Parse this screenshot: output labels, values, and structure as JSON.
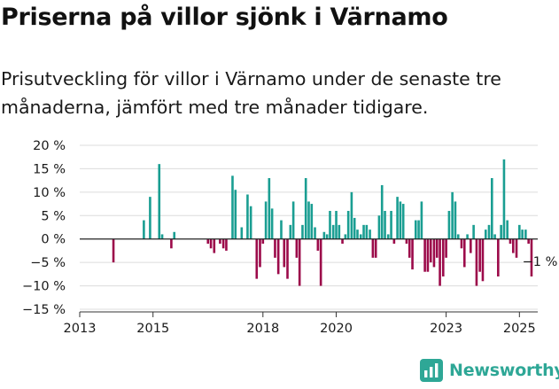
{
  "title": "Priserna på villor sjönk i Värnamo",
  "subtitle": "Prisutveckling för villor i Värnamo under de senaste tre månaderna, jämfört med tre månader tidigare.",
  "brand": {
    "name": "Newsworthy"
  },
  "colors": {
    "positive": "#1a9e92",
    "negative": "#9c0a4a",
    "grid": "#dcdcdc",
    "axis": "#333333",
    "brand": "#2ea796"
  },
  "chart_data": {
    "type": "bar",
    "title": "Priserna på villor sjönk i Värnamo",
    "subtitle": "Prisutveckling för villor i Värnamo under de senaste tre månaderna, jämfört med tre månader tidigare.",
    "xlabel": "",
    "ylabel": "",
    "x_range": [
      2013.0,
      2025.5
    ],
    "ylim": [
      -15,
      20
    ],
    "y_ticks": [
      20,
      15,
      10,
      5,
      0,
      -5,
      -10,
      -15
    ],
    "y_tick_labels": [
      "20 %",
      "15 %",
      "10 %",
      "5 %",
      "0 %",
      "−5 %",
      "−10 %",
      "−15 %"
    ],
    "x_ticks": [
      2013,
      2015,
      2018,
      2020,
      2023,
      2025
    ],
    "x_tick_labels": [
      "2013",
      "2015",
      "2018",
      "2020",
      "2023",
      "2025"
    ],
    "grid": true,
    "positive_color": "#1a9e92",
    "negative_color": "#9c0a4a",
    "annotation": {
      "text": "−1 %",
      "x": 2025.25,
      "y": -1
    },
    "points": [
      {
        "x": 2013.92,
        "y": -5
      },
      {
        "x": 2014.75,
        "y": 4
      },
      {
        "x": 2014.92,
        "y": 9
      },
      {
        "x": 2015.17,
        "y": 16
      },
      {
        "x": 2015.25,
        "y": 1
      },
      {
        "x": 2015.5,
        "y": -2
      },
      {
        "x": 2015.58,
        "y": 1.5
      },
      {
        "x": 2016.5,
        "y": -1
      },
      {
        "x": 2016.58,
        "y": -2
      },
      {
        "x": 2016.67,
        "y": -3
      },
      {
        "x": 2016.83,
        "y": -1
      },
      {
        "x": 2016.92,
        "y": -2
      },
      {
        "x": 2017.0,
        "y": -2.5
      },
      {
        "x": 2017.17,
        "y": 13.5
      },
      {
        "x": 2017.25,
        "y": 10.5
      },
      {
        "x": 2017.42,
        "y": 2.5
      },
      {
        "x": 2017.58,
        "y": 9.5
      },
      {
        "x": 2017.67,
        "y": 7
      },
      {
        "x": 2017.83,
        "y": -8.5
      },
      {
        "x": 2017.92,
        "y": -6
      },
      {
        "x": 2018.0,
        "y": -1
      },
      {
        "x": 2018.08,
        "y": 8
      },
      {
        "x": 2018.17,
        "y": 13
      },
      {
        "x": 2018.25,
        "y": 6.5
      },
      {
        "x": 2018.33,
        "y": -4
      },
      {
        "x": 2018.42,
        "y": -7.5
      },
      {
        "x": 2018.5,
        "y": 4
      },
      {
        "x": 2018.58,
        "y": -6
      },
      {
        "x": 2018.67,
        "y": -8.5
      },
      {
        "x": 2018.75,
        "y": 3
      },
      {
        "x": 2018.83,
        "y": 8
      },
      {
        "x": 2018.92,
        "y": -4
      },
      {
        "x": 2019.0,
        "y": -10
      },
      {
        "x": 2019.08,
        "y": 3
      },
      {
        "x": 2019.17,
        "y": 13
      },
      {
        "x": 2019.25,
        "y": 8
      },
      {
        "x": 2019.33,
        "y": 7.5
      },
      {
        "x": 2019.42,
        "y": 2.5
      },
      {
        "x": 2019.5,
        "y": -2.5
      },
      {
        "x": 2019.58,
        "y": -10
      },
      {
        "x": 2019.67,
        "y": 1.5
      },
      {
        "x": 2019.75,
        "y": 1
      },
      {
        "x": 2019.83,
        "y": 6
      },
      {
        "x": 2019.92,
        "y": 3
      },
      {
        "x": 2020.0,
        "y": 6
      },
      {
        "x": 2020.08,
        "y": 3
      },
      {
        "x": 2020.17,
        "y": -1
      },
      {
        "x": 2020.25,
        "y": 1
      },
      {
        "x": 2020.33,
        "y": 6
      },
      {
        "x": 2020.42,
        "y": 10
      },
      {
        "x": 2020.5,
        "y": 4.5
      },
      {
        "x": 2020.58,
        "y": 2
      },
      {
        "x": 2020.67,
        "y": 1
      },
      {
        "x": 2020.75,
        "y": 3
      },
      {
        "x": 2020.83,
        "y": 3
      },
      {
        "x": 2020.92,
        "y": 2
      },
      {
        "x": 2021.0,
        "y": -4
      },
      {
        "x": 2021.08,
        "y": -4
      },
      {
        "x": 2021.17,
        "y": 5
      },
      {
        "x": 2021.25,
        "y": 11.5
      },
      {
        "x": 2021.33,
        "y": 6
      },
      {
        "x": 2021.42,
        "y": 1
      },
      {
        "x": 2021.5,
        "y": 6
      },
      {
        "x": 2021.58,
        "y": -1
      },
      {
        "x": 2021.67,
        "y": 9
      },
      {
        "x": 2021.75,
        "y": 8
      },
      {
        "x": 2021.83,
        "y": 7.5
      },
      {
        "x": 2021.92,
        "y": -1
      },
      {
        "x": 2022.0,
        "y": -4
      },
      {
        "x": 2022.08,
        "y": -6.5
      },
      {
        "x": 2022.17,
        "y": 4
      },
      {
        "x": 2022.25,
        "y": 4
      },
      {
        "x": 2022.33,
        "y": 8
      },
      {
        "x": 2022.42,
        "y": -7
      },
      {
        "x": 2022.5,
        "y": -7
      },
      {
        "x": 2022.58,
        "y": -5
      },
      {
        "x": 2022.67,
        "y": -6
      },
      {
        "x": 2022.75,
        "y": -4
      },
      {
        "x": 2022.83,
        "y": -10
      },
      {
        "x": 2022.92,
        "y": -8
      },
      {
        "x": 2023.0,
        "y": -4
      },
      {
        "x": 2023.08,
        "y": 6
      },
      {
        "x": 2023.17,
        "y": 10
      },
      {
        "x": 2023.25,
        "y": 8
      },
      {
        "x": 2023.33,
        "y": 1
      },
      {
        "x": 2023.42,
        "y": -2
      },
      {
        "x": 2023.5,
        "y": -6
      },
      {
        "x": 2023.58,
        "y": 1
      },
      {
        "x": 2023.67,
        "y": -3
      },
      {
        "x": 2023.75,
        "y": 3
      },
      {
        "x": 2023.83,
        "y": -10
      },
      {
        "x": 2023.92,
        "y": -7
      },
      {
        "x": 2024.0,
        "y": -9
      },
      {
        "x": 2024.08,
        "y": 2
      },
      {
        "x": 2024.17,
        "y": 3
      },
      {
        "x": 2024.25,
        "y": 13
      },
      {
        "x": 2024.33,
        "y": 1
      },
      {
        "x": 2024.42,
        "y": -8
      },
      {
        "x": 2024.5,
        "y": 3
      },
      {
        "x": 2024.58,
        "y": 17
      },
      {
        "x": 2024.67,
        "y": 4
      },
      {
        "x": 2024.75,
        "y": -1
      },
      {
        "x": 2024.83,
        "y": -3
      },
      {
        "x": 2024.92,
        "y": -4
      },
      {
        "x": 2025.0,
        "y": 3
      },
      {
        "x": 2025.08,
        "y": 2
      },
      {
        "x": 2025.17,
        "y": 2
      },
      {
        "x": 2025.25,
        "y": -1
      },
      {
        "x": 2025.33,
        "y": -8
      }
    ]
  }
}
